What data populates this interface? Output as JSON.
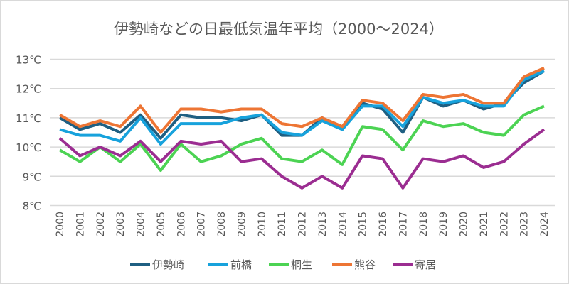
{
  "chart_data": {
    "type": "line",
    "title": "伊勢崎などの日最低気温年平均（2000～2024）",
    "xlabel": "",
    "ylabel": "",
    "x": [
      "2000",
      "2001",
      "2002",
      "2003",
      "2004",
      "2005",
      "2006",
      "2007",
      "2008",
      "2009",
      "2010",
      "2011",
      "2012",
      "2013",
      "2014",
      "2015",
      "2016",
      "2017",
      "2018",
      "2019",
      "2020",
      "2021",
      "2022",
      "2023",
      "2024"
    ],
    "ylim": [
      8,
      13
    ],
    "yticks": [
      "8℃",
      "9℃",
      "10℃",
      "11℃",
      "12℃",
      "13℃"
    ],
    "grid": true,
    "legend": "bottom",
    "series": [
      {
        "name": "伊勢崎",
        "color": "#1f5f82",
        "values": [
          11.0,
          10.6,
          10.8,
          10.5,
          11.1,
          10.3,
          11.1,
          11.0,
          11.0,
          10.9,
          11.1,
          10.4,
          10.4,
          11.0,
          10.6,
          11.5,
          11.3,
          10.5,
          11.7,
          11.4,
          11.6,
          11.3,
          11.5,
          12.2,
          12.6
        ]
      },
      {
        "name": "前橋",
        "color": "#17a2dc",
        "values": [
          10.6,
          10.4,
          10.4,
          10.2,
          11.0,
          10.1,
          10.8,
          10.8,
          10.8,
          11.0,
          11.1,
          10.5,
          10.4,
          10.9,
          10.6,
          11.4,
          11.4,
          10.7,
          11.7,
          11.5,
          11.6,
          11.4,
          11.4,
          12.3,
          12.6
        ]
      },
      {
        "name": "桐生",
        "color": "#4cd353",
        "values": [
          9.9,
          9.5,
          10.0,
          9.5,
          10.1,
          9.2,
          10.1,
          9.5,
          9.7,
          10.1,
          10.3,
          9.6,
          9.5,
          9.9,
          9.4,
          10.7,
          10.6,
          9.9,
          10.9,
          10.7,
          10.8,
          10.5,
          10.4,
          11.1,
          11.4
        ]
      },
      {
        "name": "熊谷",
        "color": "#ed7534",
        "values": [
          11.1,
          10.7,
          10.9,
          10.7,
          11.4,
          10.5,
          11.3,
          11.3,
          11.2,
          11.3,
          11.3,
          10.8,
          10.7,
          11.0,
          10.7,
          11.6,
          11.5,
          10.9,
          11.8,
          11.7,
          11.8,
          11.5,
          11.5,
          12.4,
          12.7
        ]
      },
      {
        "name": "寄居",
        "color": "#9b2d91",
        "values": [
          10.3,
          9.7,
          10.0,
          9.7,
          10.2,
          9.5,
          10.2,
          10.1,
          10.2,
          9.5,
          9.6,
          9.0,
          8.6,
          9.0,
          8.6,
          9.7,
          9.6,
          8.6,
          9.6,
          9.5,
          9.7,
          9.3,
          9.5,
          10.1,
          10.6
        ]
      }
    ]
  }
}
